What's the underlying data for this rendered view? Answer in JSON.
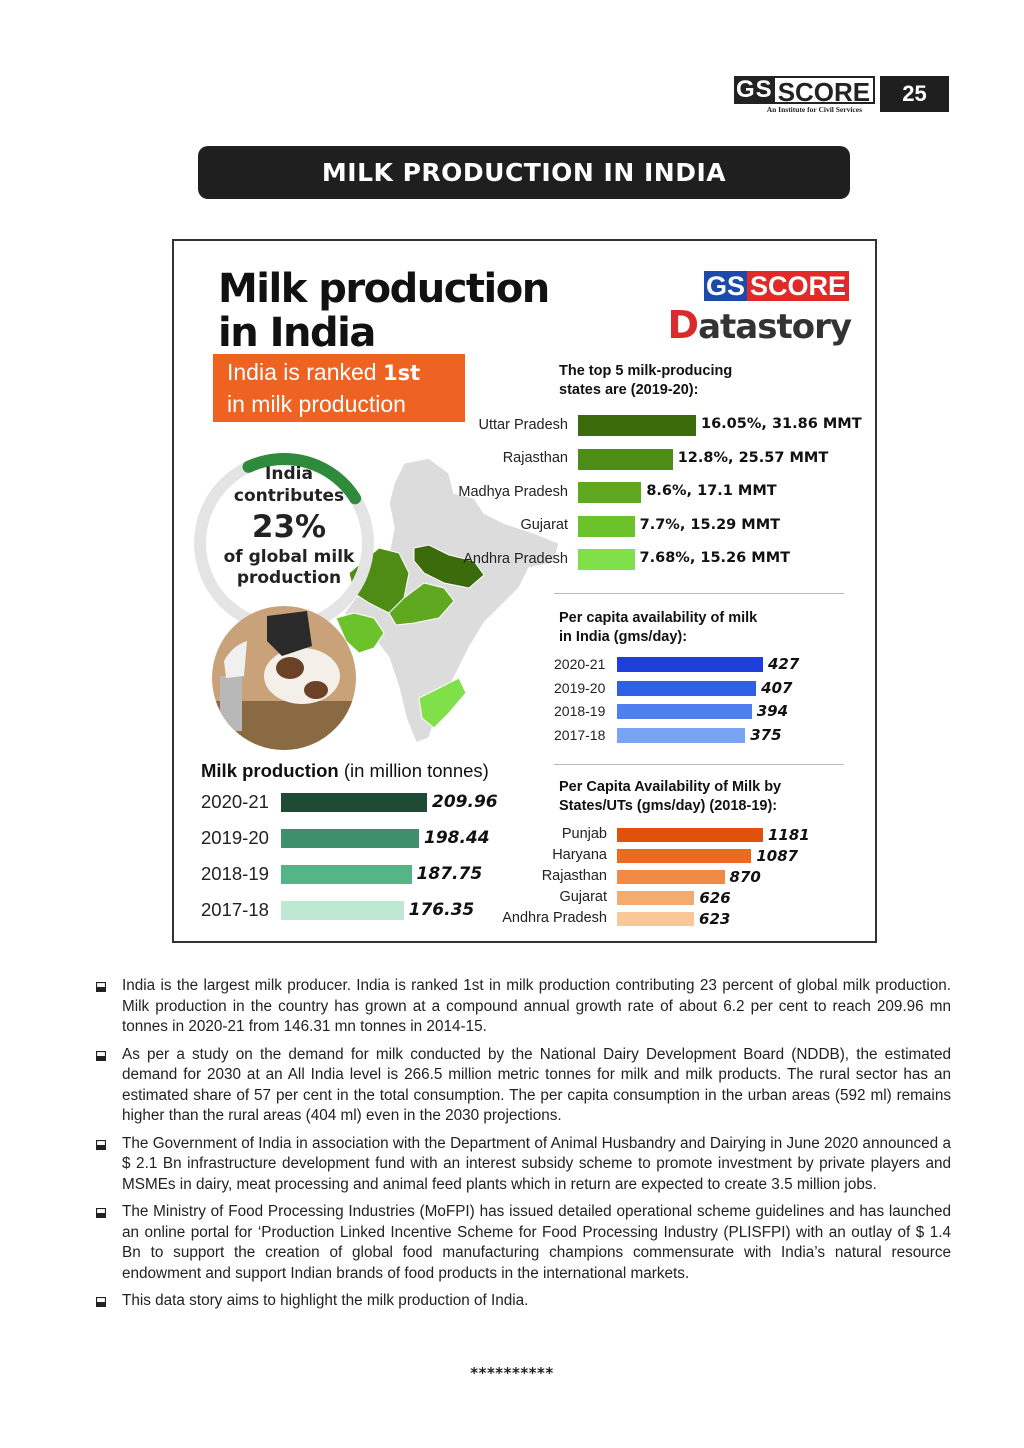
{
  "header": {
    "brand_gs": "GS",
    "brand_score": "SCORE",
    "brand_tagline": "An Institute for Civil Services",
    "page_number": "25",
    "banner_title": "MILK PRODUCTION IN INDIA"
  },
  "infographic": {
    "title_line1": "Milk production",
    "title_line2": "in India",
    "ds_gs": "GS",
    "ds_score": "SCORE",
    "ds_d": "D",
    "ds_rest": "atastory",
    "rank_line1_pre": "India is ranked ",
    "rank_line1_bold": "1st",
    "rank_line2": "in milk production",
    "contribution": {
      "line1": "India",
      "line2": "contributes",
      "percent": "23%",
      "percent_value": 23,
      "line3": "of global milk",
      "line4": "production"
    },
    "colors": {
      "orange": "#ee6322",
      "donut_green": "#2e8b3c",
      "donut_grey": "#e4e4e4"
    }
  },
  "chart_data": [
    {
      "type": "bar",
      "orientation": "horizontal",
      "title": "The top 5 milk-producing states are (2019-20):",
      "categories": [
        "Uttar Pradesh",
        "Rajasthan",
        "Madhya Pradesh",
        "Gujarat",
        "Andhra Pradesh"
      ],
      "values": [
        31.86,
        25.57,
        17.1,
        15.29,
        15.26
      ],
      "shares": [
        16.05,
        12.8,
        8.6,
        7.7,
        7.68
      ],
      "labels": [
        "16.05%, 31.86 MMT",
        "12.8%, 25.57 MMT",
        "8.6%, 17.1 MMT",
        "7.7%, 15.29 MMT",
        "7.68%, 15.26 MMT"
      ],
      "colors": [
        "#3b6b0a",
        "#4e8c16",
        "#5fa81f",
        "#6cc22b",
        "#7fe04a"
      ]
    },
    {
      "type": "bar",
      "orientation": "horizontal",
      "title": "Per capita availability of milk in India (gms/day):",
      "categories": [
        "2020-21",
        "2019-20",
        "2018-19",
        "2017-18"
      ],
      "values": [
        427,
        407,
        394,
        375
      ],
      "colors": [
        "#1f3fdc",
        "#2f5fe6",
        "#4f7fee",
        "#7aa2f5"
      ]
    },
    {
      "type": "bar",
      "orientation": "horizontal",
      "title": "Per Capita Availability of Milk by States/UTs (gms/day) (2018-19):",
      "categories": [
        "Punjab",
        "Haryana",
        "Rajasthan",
        "Gujarat",
        "Andhra Pradesh"
      ],
      "values": [
        1181,
        1087,
        870,
        626,
        623
      ],
      "colors": [
        "#e0520c",
        "#ea6a20",
        "#f08a44",
        "#f5aa6e",
        "#f9c898"
      ]
    },
    {
      "type": "bar",
      "orientation": "horizontal",
      "title_bold": "Milk production",
      "title_rest": " (in million tonnes)",
      "categories": [
        "2020-21",
        "2019-20",
        "2018-19",
        "2017-18"
      ],
      "values": [
        209.96,
        198.44,
        187.75,
        176.35
      ],
      "colors": [
        "#1e4a36",
        "#3f8f6c",
        "#55b587",
        "#bfe8d2"
      ]
    }
  ],
  "bullets": [
    "India is the largest milk producer. India is ranked 1st in milk production contributing 23 percent of global milk production. Milk production in the country has grown at a compound annual growth rate of about 6.2 per cent to reach 209.96 mn tonnes in 2020-21 from 146.31 mn tonnes in 2014-15.",
    "As per a study on the demand for milk conducted by the National Dairy Development Board (NDDB), the estimated demand for 2030 at an All India level is 266.5 million metric tonnes for milk and milk products. The rural sector has an estimated share of 57 per cent in the total consumption. The per capita consumption in the urban areas (592 ml) remains higher than the rural areas (404 ml) even in the 2030 projections.",
    "The Government of India in association with the Department of Animal Husbandry and Dairying in June 2020 announced a $ 2.1 Bn infrastructure development fund with an interest subsidy scheme to promote investment by private players and MSMEs in dairy, meat processing and animal feed plants which in return are expected to create 3.5 million jobs.",
    "The Ministry of Food Processing Industries (MoFPI) has issued detailed operational scheme guidelines and has launched an online portal for ‘Production Linked Incentive Scheme for Food Processing Industry (PLISFPI) with an outlay of $ 1.4 Bn to support the creation of global food manufacturing champions commensurate with India’s natural resource endowment and support Indian brands of food products in the international markets.",
    "This data story aims to highlight the milk production of India."
  ],
  "footer": {
    "stars": "**********"
  }
}
